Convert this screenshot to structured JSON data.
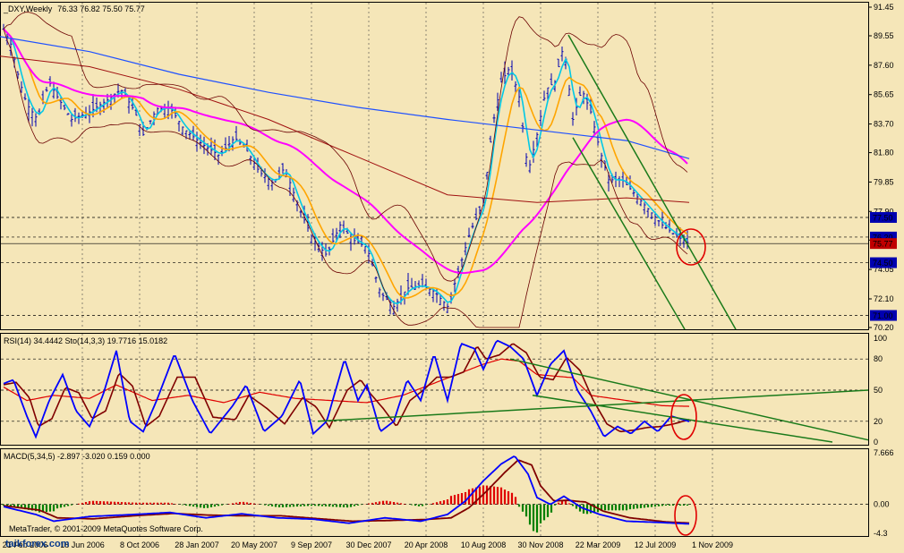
{
  "window": {
    "symbol_header": "_DXY,Weekly",
    "ohlc": "76.33 76.82 75.50 75.77"
  },
  "price_panel": {
    "yticks": [
      "91.45",
      "89.55",
      "87.60",
      "85.65",
      "83.70",
      "81.80",
      "79.85",
      "77.90",
      "76.00",
      "74.05",
      "72.10",
      "70.20"
    ],
    "level_boxes": [
      {
        "label": "77.50",
        "bg": "#0000b0"
      },
      {
        "label": "76.20",
        "bg": "#0000b0"
      },
      {
        "label": "75.77",
        "bg": "#c00000"
      },
      {
        "label": "74.50",
        "bg": "#0000b0"
      },
      {
        "label": "71.00",
        "bg": "#0000b0"
      }
    ]
  },
  "rsi_panel": {
    "header": "RSI(14) 34.4442  Sto(14,3,3) 19.7716 15.0182",
    "yticks": [
      "100",
      "80",
      "50",
      "20",
      "0"
    ]
  },
  "macd_panel": {
    "header": "MACD(5,34,5) -2.897 -3.020 0.159 0.000",
    "yticks": [
      "7.666",
      "0.00",
      "-4.3"
    ]
  },
  "x_axis": {
    "labels": [
      "21 Feb 2006",
      "18 Jun 2006",
      "8 Oct 2006",
      "28 Jan 2007",
      "20 May 2007",
      "9 Sep 2007",
      "30 Dec 2007",
      "20 Apr 2008",
      "10 Aug 2008",
      "30 Nov 2008",
      "22 Mar 2009",
      "12 Jul 2009",
      "1 Nov 2009"
    ]
  },
  "watermark": {
    "line1": "MetaTrader, © 2001-2009 MetaQuotes Software Corp.",
    "line2": "taikforex.com"
  },
  "colors": {
    "background": "#f5e6b8",
    "candle_up": "#0000b0",
    "ema_fast": "#00c8e6",
    "ema_mid": "#ffa500",
    "ma_magenta": "#ff00ff",
    "ma_blue": "#1e50ff",
    "bollinger": "#6b0000",
    "trend_green": "#1a7a1a",
    "rsi_red": "#e00000",
    "sto_blue": "#0000ff",
    "sto_signal": "#800000",
    "macd_hist_up": "#e00000",
    "macd_hist_down": "#008000",
    "circle": "#e00000"
  },
  "chart_data": [
    {
      "type": "line",
      "title": "_DXY,Weekly",
      "ylim": [
        70.2,
        91.45
      ],
      "x": [
        "21 Feb 2006",
        "18 Jun 2006",
        "8 Oct 2006",
        "28 Jan 2007",
        "20 May 2007",
        "9 Sep 2007",
        "30 Dec 2007",
        "20 Apr 2008",
        "10 Aug 2008",
        "30 Nov 2008",
        "22 Mar 2009",
        "12 Jul 2009",
        "1 Nov 2009"
      ],
      "series": [
        {
          "name": "Close",
          "values": [
            90.3,
            85.8,
            84.8,
            84.0,
            82.0,
            79.6,
            76.5,
            72.5,
            77.5,
            86.5,
            86.0,
            79.5,
            75.77
          ]
        }
      ]
    },
    {
      "type": "line",
      "title": "RSI(14) 34.4442  Sto(14,3,3) 19.7716 15.0182",
      "ylim": [
        0,
        100
      ],
      "series": [
        {
          "name": "RSI(14)",
          "values": [
            55,
            42,
            45,
            38,
            42,
            40,
            38,
            48,
            60,
            78,
            62,
            45,
            34.4
          ]
        },
        {
          "name": "Sto(14,3,3)",
          "values": [
            55,
            10,
            70,
            25,
            80,
            20,
            85,
            70,
            95,
            92,
            30,
            8,
            19.8
          ]
        }
      ]
    },
    {
      "type": "line",
      "title": "MACD(5,34,5) -2.897 -3.020 0.159 0.000",
      "ylim": [
        -4.3,
        7.666
      ],
      "series": [
        {
          "name": "MACD",
          "values": [
            -0.2,
            -2.5,
            -1.5,
            -1.2,
            -1.8,
            -2.0,
            -2.8,
            -2.5,
            3.0,
            6.5,
            -0.5,
            -2.7,
            -2.897
          ]
        },
        {
          "name": "Signal",
          "values": [
            -0.3,
            -2.2,
            -1.6,
            -1.3,
            -1.7,
            -2.1,
            -2.6,
            -2.6,
            2.5,
            6.8,
            0.0,
            -2.5,
            -3.02
          ]
        }
      ]
    }
  ]
}
